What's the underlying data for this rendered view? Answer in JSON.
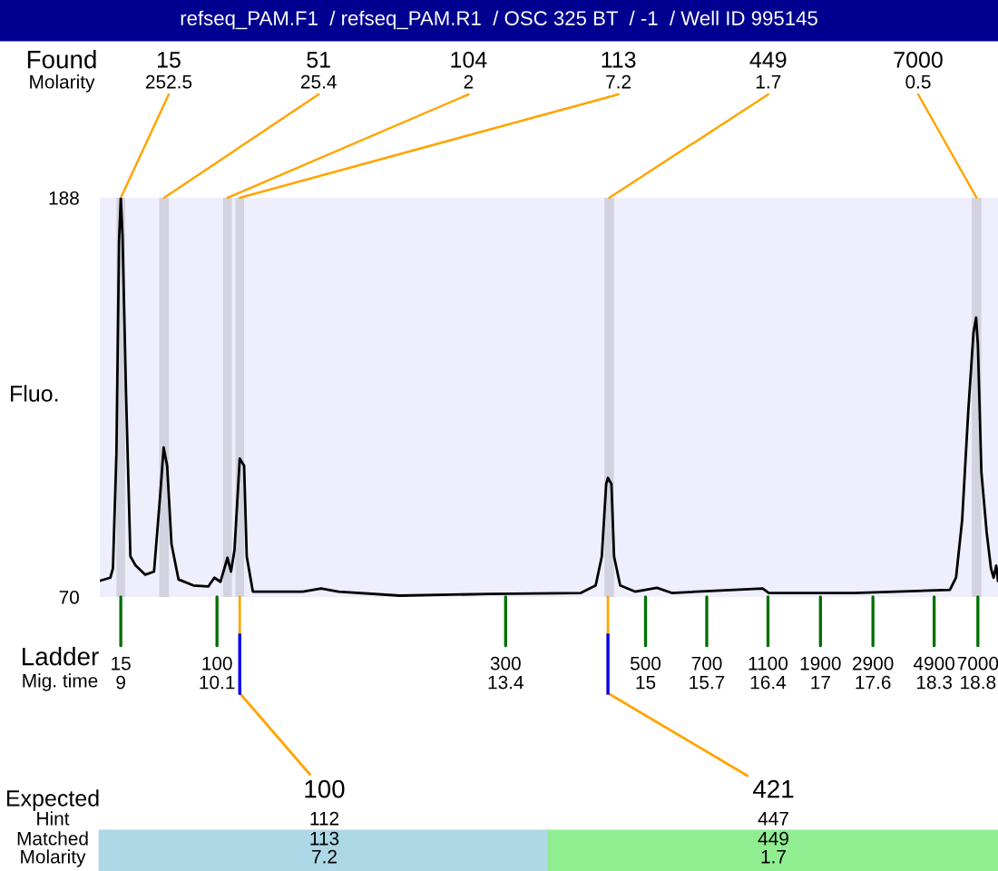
{
  "chart_data": {
    "type": "line",
    "title": "refseq_PAM.F1  / refseq_PAM.R1  / OSC 325 BT  / -1  / Well ID 995145",
    "ylabel": "Fluo.",
    "x": [
      8.76,
      8.88,
      8.91,
      8.95,
      8.98,
      9.0,
      9.02,
      9.06,
      9.11,
      9.17,
      9.28,
      9.38,
      9.45,
      9.49,
      9.53,
      9.58,
      9.66,
      9.83,
      10.0,
      10.07,
      10.14,
      10.22,
      10.26,
      10.3,
      10.36,
      10.41,
      10.44,
      10.51,
      11.08,
      11.29,
      11.49,
      12.19,
      13.22,
      14.26,
      14.43,
      14.5,
      14.55,
      14.57,
      14.61,
      14.64,
      14.71,
      14.88,
      15.13,
      15.3,
      16.34,
      16.41,
      17.38,
      18.48,
      18.55,
      18.62,
      18.69,
      18.75,
      18.78,
      18.8,
      18.84,
      18.9,
      18.95,
      18.98,
      19.01,
      19.03
    ],
    "series": [
      {
        "color": "#000000",
        "values": [
          74.8,
          75.7,
          78.4,
          112.4,
          175.2,
          188,
          176.8,
          130.2,
          82.0,
          79.3,
          76.6,
          77.5,
          100.0,
          114.2,
          108.8,
          85.6,
          75.2,
          73.4,
          73.1,
          75.7,
          74.5,
          81.6,
          77.5,
          83.8,
          110.9,
          108.8,
          82.0,
          71.6,
          71.6,
          72.5,
          71.6,
          70.4,
          70.9,
          71.2,
          73.4,
          82.0,
          103.4,
          105.2,
          103.4,
          82.0,
          73.4,
          71.6,
          72.7,
          71.2,
          72.5,
          71.2,
          71.2,
          72.1,
          75.7,
          92.7,
          124.9,
          148.2,
          152.6,
          144.6,
          107.0,
          89.2,
          78.4,
          75.7,
          79.3,
          74.8
        ]
      }
    ],
    "xlim": [
      8.76,
      19.03
    ],
    "ylim": [
      70,
      188
    ],
    "yticks": [
      70,
      188
    ],
    "xticks": [
      9,
      10.1,
      13.4,
      15,
      15.7,
      16.4,
      17,
      17.6,
      18.3,
      18.8
    ],
    "bands": [
      {
        "axis": "x",
        "from": 8.95,
        "to": 9.05,
        "label": "15\n252.5",
        "color": "#d3d3e0"
      },
      {
        "axis": "x",
        "from": 9.44,
        "to": 9.55,
        "label": "51\n25.4",
        "color": "#d3d3e0"
      },
      {
        "axis": "x",
        "from": 10.17,
        "to": 10.27,
        "label": "104\n2",
        "color": "#d3d3e0"
      },
      {
        "axis": "x",
        "from": 10.31,
        "to": 10.41,
        "label": "113\n7.2",
        "color": "#d3d3e0"
      },
      {
        "axis": "x",
        "from": 14.53,
        "to": 14.64,
        "label": "449\n1.7",
        "color": "#d3d3e0"
      },
      {
        "axis": "x",
        "from": 18.73,
        "to": 18.84,
        "label": "7000\n0.5",
        "color": "#d3d3e0"
      }
    ],
    "annotations": [
      "Found",
      "Molarity",
      "Ladder",
      "Mig. time",
      {
        "text": "15",
        "x": 9,
        "y": 70
      },
      {
        "text": "100",
        "x": 10.1,
        "y": 70
      },
      {
        "text": "300",
        "x": 13.4,
        "y": 70
      },
      {
        "text": "500",
        "x": 15,
        "y": 70
      },
      {
        "text": "700",
        "x": 15.7,
        "y": 70
      },
      {
        "text": "1100",
        "x": 16.4,
        "y": 70
      },
      {
        "text": "1900",
        "x": 17,
        "y": 70
      },
      {
        "text": "2900",
        "x": 17.6,
        "y": 70
      },
      {
        "text": "4900",
        "x": 18.3,
        "y": 70
      },
      {
        "text": "7000",
        "x": 18.8,
        "y": 70
      },
      "Expected",
      "Hint",
      "Matched",
      "Molarity",
      {
        "text": "100",
        "x": 10.36,
        "y": 70
      },
      {
        "text": "421",
        "x": 14.57,
        "y": 70
      },
      "112",
      "113",
      "7.2",
      "447",
      "449",
      "1.7"
    ],
    "grid": false,
    "legend": false
  }
}
